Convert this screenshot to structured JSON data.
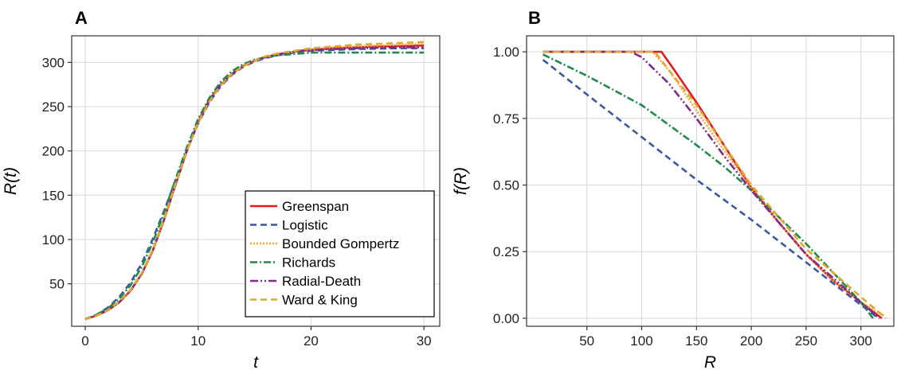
{
  "chart_data": [
    {
      "id": "A",
      "type": "line",
      "panel_label": "A",
      "xlabel": "t",
      "ylabel": "R(t)",
      "xlim": [
        -1.2,
        31.4
      ],
      "ylim": [
        2,
        330
      ],
      "x_ticks": [
        0,
        10,
        20,
        30
      ],
      "y_ticks": [
        50,
        100,
        150,
        200,
        250,
        300
      ],
      "grid": true,
      "legend": "bottom-right",
      "series": [
        {
          "name": "Greenspan",
          "color": "#e41a1c",
          "dash": "solid",
          "x": [
            0,
            1,
            2,
            3,
            4,
            5,
            6,
            7,
            8,
            9,
            10,
            11,
            12,
            13,
            14,
            15,
            16,
            17,
            18,
            19,
            20,
            22,
            24,
            26,
            28,
            30
          ],
          "y": [
            10,
            14,
            20,
            29,
            42,
            61,
            88,
            123,
            162,
            200,
            233,
            258,
            275,
            287,
            296,
            302,
            306,
            309,
            311,
            313,
            314,
            316,
            317,
            318,
            318.5,
            319
          ]
        },
        {
          "name": "Logistic",
          "color": "#3b58a5",
          "dash": "8,5",
          "x": [
            0,
            1,
            2,
            3,
            4,
            5,
            6,
            7,
            8,
            9,
            10,
            11,
            12,
            13,
            14,
            15,
            16,
            17,
            18,
            19,
            20,
            22,
            24,
            26,
            28,
            30
          ],
          "y": [
            10,
            15,
            23,
            35,
            51,
            73,
            101,
            133,
            167,
            201,
            231,
            255,
            273,
            286,
            295,
            301,
            305,
            308,
            310,
            312,
            313,
            314,
            315,
            315.5,
            316,
            316
          ]
        },
        {
          "name": "Bounded Gompertz",
          "color": "#f4a93b",
          "dash": "2,2",
          "x": [
            0,
            1,
            2,
            3,
            4,
            5,
            6,
            7,
            8,
            9,
            10,
            11,
            12,
            13,
            14,
            15,
            16,
            17,
            18,
            19,
            20,
            22,
            24,
            26,
            28,
            30
          ],
          "y": [
            10,
            14,
            20,
            29,
            42,
            61,
            88,
            123,
            162,
            200,
            233,
            258,
            275,
            287,
            296,
            302,
            306,
            309,
            311,
            313,
            315,
            317,
            318,
            319,
            320,
            321
          ]
        },
        {
          "name": "Richards",
          "color": "#1f8a4c",
          "dash": "9,3,2,3",
          "x": [
            0,
            1,
            2,
            3,
            4,
            5,
            6,
            7,
            8,
            9,
            10,
            11,
            12,
            13,
            14,
            15,
            16,
            17,
            18,
            19,
            20,
            22,
            24,
            26,
            28,
            30
          ],
          "y": [
            10,
            15,
            22,
            33,
            48,
            69,
            97,
            131,
            168,
            204,
            236,
            260,
            278,
            290,
            298,
            303,
            306,
            308,
            309,
            310,
            311,
            311,
            311,
            311,
            311,
            311
          ]
        },
        {
          "name": "Radial-Death",
          "color": "#7e2a8e",
          "dash": "10,3,2,3,2,3",
          "x": [
            0,
            1,
            2,
            3,
            4,
            5,
            6,
            7,
            8,
            9,
            10,
            11,
            12,
            13,
            14,
            15,
            16,
            17,
            18,
            19,
            20,
            22,
            24,
            26,
            28,
            30
          ],
          "y": [
            10,
            14,
            20,
            29,
            42,
            61,
            88,
            123,
            162,
            200,
            232,
            257,
            275,
            287,
            296,
            302,
            306,
            309,
            311,
            313,
            314,
            315,
            316,
            316.5,
            317,
            317
          ]
        },
        {
          "name": "Ward & King",
          "color": "#e0a82e",
          "dash": "8,5",
          "x": [
            0,
            1,
            2,
            3,
            4,
            5,
            6,
            7,
            8,
            9,
            10,
            11,
            12,
            13,
            14,
            15,
            16,
            17,
            18,
            19,
            20,
            22,
            24,
            26,
            28,
            30
          ],
          "y": [
            10,
            14,
            20,
            30,
            43,
            62,
            89,
            124,
            163,
            200,
            232,
            256,
            274,
            287,
            296,
            302,
            307,
            310,
            312,
            314,
            316,
            318,
            320,
            321,
            322,
            323
          ]
        }
      ]
    },
    {
      "id": "B",
      "type": "line",
      "panel_label": "B",
      "xlabel": "R",
      "ylabel": "f(R)",
      "xlim": [
        -5,
        330
      ],
      "ylim": [
        -0.03,
        1.06
      ],
      "x_ticks": [
        50,
        100,
        150,
        200,
        250,
        300
      ],
      "y_ticks": [
        0,
        0.25,
        0.5,
        0.75,
        1
      ],
      "y_tick_labels": [
        "0.00",
        "0.25",
        "0.50",
        "0.75",
        "1.00"
      ],
      "grid": true,
      "legend": "none",
      "series": [
        {
          "name": "Greenspan",
          "color": "#e41a1c",
          "dash": "solid",
          "x": [
            10,
            118,
            130,
            150,
            175,
            200,
            225,
            250,
            275,
            300,
            319
          ],
          "y": [
            1,
            1,
            0.93,
            0.81,
            0.65,
            0.49,
            0.36,
            0.24,
            0.14,
            0.06,
            0
          ]
        },
        {
          "name": "Logistic",
          "color": "#3b58a5",
          "dash": "8,5",
          "x": [
            10,
            50,
            100,
            150,
            200,
            250,
            300,
            316
          ],
          "y": [
            0.97,
            0.84,
            0.68,
            0.52,
            0.37,
            0.21,
            0.05,
            0
          ]
        },
        {
          "name": "Bounded Gompertz",
          "color": "#f4a93b",
          "dash": "2,2",
          "x": [
            10,
            110,
            125,
            150,
            175,
            200,
            225,
            250,
            275,
            300,
            321
          ],
          "y": [
            1,
            1,
            0.93,
            0.78,
            0.63,
            0.49,
            0.36,
            0.24,
            0.14,
            0.06,
            0.01
          ]
        },
        {
          "name": "Richards",
          "color": "#1f8a4c",
          "dash": "9,3,2,3",
          "x": [
            10,
            50,
            100,
            150,
            175,
            200,
            250,
            300,
            311
          ],
          "y": [
            0.99,
            0.91,
            0.8,
            0.65,
            0.57,
            0.48,
            0.28,
            0.06,
            0
          ]
        },
        {
          "name": "Radial-Death",
          "color": "#7e2a8e",
          "dash": "10,3,2,3,2,3",
          "x": [
            10,
            90,
            100,
            125,
            150,
            175,
            200,
            250,
            300,
            317
          ],
          "y": [
            1,
            1,
            0.98,
            0.88,
            0.75,
            0.61,
            0.48,
            0.24,
            0.06,
            0
          ]
        },
        {
          "name": "Ward & King",
          "color": "#e0a82e",
          "dash": "8,5",
          "x": [
            10,
            112,
            125,
            150,
            175,
            200,
            250,
            300,
            323
          ],
          "y": [
            1,
            1,
            0.93,
            0.8,
            0.65,
            0.5,
            0.26,
            0.08,
            0
          ]
        }
      ]
    }
  ],
  "legend": {
    "items": [
      {
        "label": "Greenspan",
        "color": "#e41a1c",
        "dash": "solid"
      },
      {
        "label": "Logistic",
        "color": "#3b58a5",
        "dash": "8,5"
      },
      {
        "label": "Bounded Gompertz",
        "color": "#f4a93b",
        "dash": "2,2"
      },
      {
        "label": "Richards",
        "color": "#1f8a4c",
        "dash": "9,3,2,3"
      },
      {
        "label": "Radial-Death",
        "color": "#7e2a8e",
        "dash": "10,3,2,3,2,3"
      },
      {
        "label": "Ward & King",
        "color": "#e0a82e",
        "dash": "8,5"
      }
    ]
  },
  "colors": {
    "grid": "#d9d9d9",
    "frame": "#333333"
  }
}
